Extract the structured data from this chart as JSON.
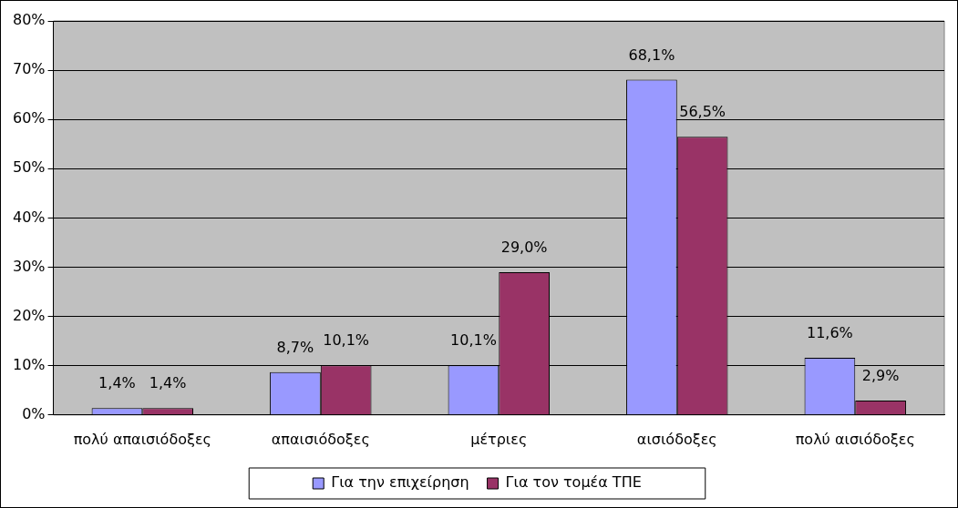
{
  "chart_data": {
    "type": "bar",
    "categories": [
      "πολύ απαισιόδοξες",
      "απαισιόδοξες",
      "μέτριες",
      "αισιόδοξες",
      "πολύ αισιόδοξες"
    ],
    "series": [
      {
        "name": "Για την επιχείρηση",
        "color": "#9999ff",
        "values": [
          1.4,
          8.7,
          10.1,
          68.1,
          11.6
        ],
        "value_labels": [
          "1,4%",
          "8,7%",
          "10,1%",
          "68,1%",
          "11,6%"
        ]
      },
      {
        "name": "Για τον τομέα ΤΠΕ",
        "color": "#993366",
        "values": [
          1.4,
          10.1,
          29.0,
          56.5,
          2.9
        ],
        "value_labels": [
          "1,4%",
          "10,1%",
          "29,0%",
          "56,5%",
          "2,9%"
        ]
      }
    ],
    "ylim": [
      0,
      80
    ],
    "yticks": [
      {
        "value": 0,
        "label": "0%"
      },
      {
        "value": 10,
        "label": "10%"
      },
      {
        "value": 20,
        "label": "20%"
      },
      {
        "value": 30,
        "label": "30%"
      },
      {
        "value": 40,
        "label": "40%"
      },
      {
        "value": 50,
        "label": "50%"
      },
      {
        "value": 60,
        "label": "60%"
      },
      {
        "value": 70,
        "label": "70%"
      },
      {
        "value": 80,
        "label": "80%"
      }
    ],
    "grid": "y",
    "legend": "bottom"
  }
}
